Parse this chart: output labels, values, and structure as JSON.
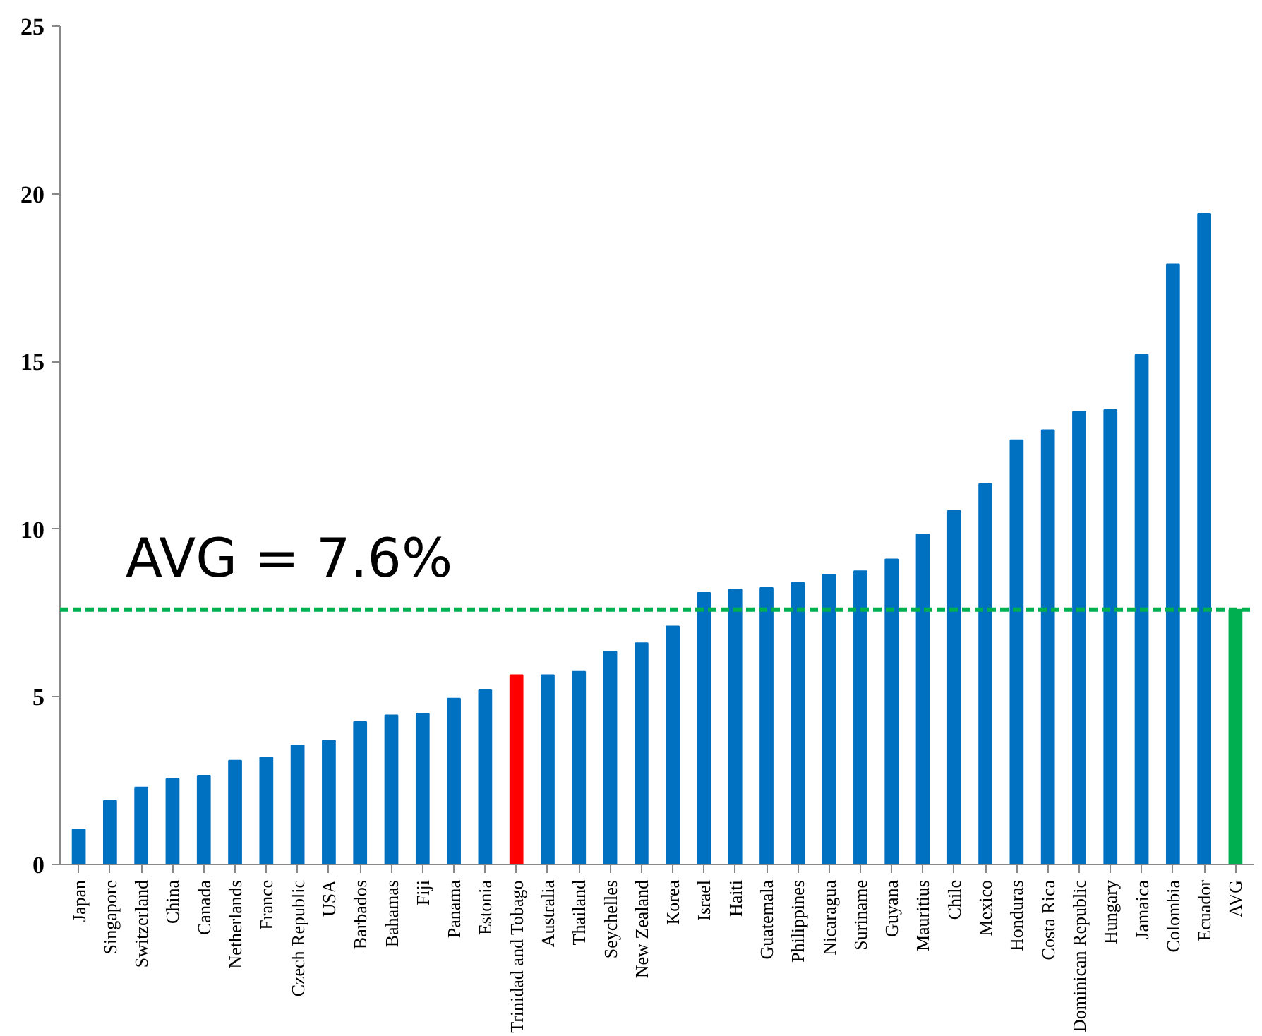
{
  "chart_data": {
    "type": "bar",
    "categories": [
      "Japan",
      "Singapore",
      "Switzerland",
      "China",
      "Canada",
      "Netherlands",
      "France",
      "Czech Republic",
      "USA",
      "Barbados",
      "Bahamas",
      "Fiji",
      "Panama",
      "Estonia",
      "Trinidad and Tobago",
      "Australia",
      "Thailand",
      "Seychelles",
      "New Zealand",
      "Korea",
      "Israel",
      "Haiti",
      "Guatemala",
      "Philippines",
      "Nicaragua",
      "Suriname",
      "Guyana",
      "Mauritius",
      "Chile",
      "Mexico",
      "Honduras",
      "Costa Rica",
      "Dominican Republic",
      "Hungary",
      "Jamaica",
      "Colombia",
      "Ecuador",
      "AVG"
    ],
    "values": [
      1.05,
      1.9,
      2.3,
      2.55,
      2.65,
      3.1,
      3.2,
      3.55,
      3.7,
      4.25,
      4.45,
      4.5,
      4.95,
      5.2,
      5.65,
      5.65,
      5.75,
      6.35,
      6.6,
      7.1,
      8.1,
      8.2,
      8.25,
      8.4,
      8.65,
      8.75,
      9.1,
      9.85,
      10.55,
      11.35,
      12.65,
      12.95,
      13.5,
      13.55,
      15.2,
      17.9,
      19.4,
      7.6
    ],
    "colors": [
      "#0070c0",
      "#0070c0",
      "#0070c0",
      "#0070c0",
      "#0070c0",
      "#0070c0",
      "#0070c0",
      "#0070c0",
      "#0070c0",
      "#0070c0",
      "#0070c0",
      "#0070c0",
      "#0070c0",
      "#0070c0",
      "#ff0000",
      "#0070c0",
      "#0070c0",
      "#0070c0",
      "#0070c0",
      "#0070c0",
      "#0070c0",
      "#0070c0",
      "#0070c0",
      "#0070c0",
      "#0070c0",
      "#0070c0",
      "#0070c0",
      "#0070c0",
      "#0070c0",
      "#0070c0",
      "#0070c0",
      "#0070c0",
      "#0070c0",
      "#0070c0",
      "#0070c0",
      "#0070c0",
      "#0070c0",
      "#00b050"
    ],
    "ylim": [
      0,
      25
    ],
    "yticks": [
      0,
      5,
      10,
      15,
      20,
      25
    ],
    "grid": false,
    "ref_lines": [
      {
        "axis": "y",
        "value": 7.6,
        "label": "AVG = 7.6%",
        "color": "#00b050",
        "line_style": "dashed"
      }
    ]
  }
}
